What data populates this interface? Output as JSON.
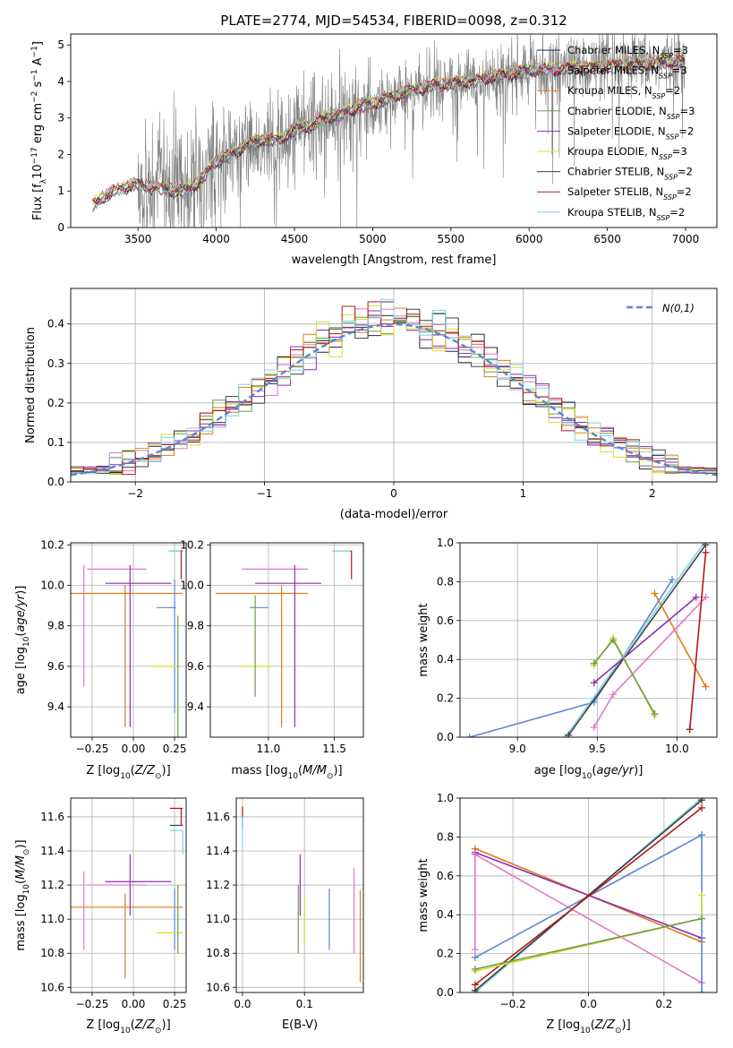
{
  "figure": {
    "title": "PLATE=2774, MJD=54534, FIBERID=0098, z=0.312"
  },
  "colors": {
    "data_gray": "#808080",
    "Chabrier MILES": "#1f2a3a",
    "Salpeter MILES": "#e377c2",
    "Kroupa MILES": "#e07b1a",
    "Chabrier ELODIE": "#6e9a52",
    "Salpeter ELODIE": "#8e2fb5",
    "Kroupa ELODIE": "#d8dd2a",
    "Chabrier STELIB": "#404040",
    "Salpeter STELIB": "#b01818",
    "Kroupa STELIB": "#7fd3df",
    "gaussian": "#5b86d6",
    "extra_blue": "#5b86d6",
    "extra_lime": "#a8dc3c"
  },
  "chart_data": [
    {
      "id": "spectrum",
      "type": "line",
      "title": "PLATE=2774, MJD=54534, FIBERID=0098, z=0.312",
      "xlabel": "wavelength [Angstrom, rest frame]",
      "ylabel": "Flux [f_λ 10^-17 erg cm^-2 s^-1 A^-1]",
      "xlim": [
        3070,
        7200
      ],
      "ylim": [
        0,
        5.3
      ],
      "xticks": [
        3500,
        4000,
        4500,
        5000,
        5500,
        6000,
        6500,
        7000
      ],
      "yticks": [
        0,
        1,
        2,
        3,
        4,
        5
      ],
      "legend_position": "right",
      "series": [
        {
          "name": "Chabrier MILES, N_SSP=3",
          "base": "Chabrier MILES",
          "offset": 0.0
        },
        {
          "name": "Salpeter MILES, N_SSP=3",
          "base": "Salpeter MILES",
          "offset": 0.02
        },
        {
          "name": "Kroupa MILES, N_SSP=2",
          "base": "Kroupa MILES",
          "offset": 0.05
        },
        {
          "name": "Chabrier ELODIE, N_SSP=3",
          "base": "Chabrier ELODIE",
          "offset": -0.03
        },
        {
          "name": "Salpeter ELODIE, N_SSP=2",
          "base": "Salpeter ELODIE",
          "offset": -0.02
        },
        {
          "name": "Kroupa ELODIE, N_SSP=3",
          "base": "Kroupa ELODIE",
          "offset": 0.04
        },
        {
          "name": "Chabrier STELIB, N_SSP=2",
          "base": "Chabrier STELIB",
          "offset": -0.05
        },
        {
          "name": "Salpeter STELIB, N_SSP=2",
          "base": "Salpeter STELIB",
          "offset": -0.01
        },
        {
          "name": "Kroupa STELIB, N_SSP=2",
          "base": "Kroupa STELIB",
          "offset": 0.01
        }
      ],
      "model_anchors": {
        "x": [
          3200,
          3300,
          3400,
          3500,
          3600,
          3700,
          3800,
          3900,
          4000,
          4100,
          4200,
          4300,
          4400,
          4500,
          4600,
          4700,
          4800,
          4900,
          5000,
          5200,
          5400,
          5600,
          5800,
          6000,
          6200,
          6400,
          6600,
          6800,
          7000
        ],
        "y": [
          0.6,
          0.9,
          1.1,
          1.2,
          1.1,
          1.05,
          1.0,
          1.3,
          1.8,
          2.0,
          2.3,
          2.4,
          2.4,
          2.7,
          2.8,
          3.0,
          3.1,
          3.3,
          3.4,
          3.7,
          3.9,
          4.0,
          4.15,
          4.3,
          4.35,
          4.4,
          4.45,
          4.5,
          4.55
        ]
      },
      "data_anchors": {
        "x_start": 3500,
        "x_end": 7000
      }
    },
    {
      "id": "residuals",
      "type": "line",
      "xlabel": "(data-model)/error",
      "ylabel": "Normed distribution",
      "xlim": [
        -2.5,
        2.5
      ],
      "ylim": [
        0,
        0.49
      ],
      "xticks": [
        -2,
        -1,
        0,
        1,
        2
      ],
      "yticks": [
        0.0,
        0.1,
        0.2,
        0.3,
        0.4
      ],
      "legend_position": "upper right",
      "gaussian_label": "N(0,1)",
      "bin_width": 0.1
    },
    {
      "id": "age_vs_Z",
      "type": "scatter",
      "xlabel": "Z [log10(Z/Z☉)]",
      "ylabel": "age [log10(age/yr)]",
      "xlim": [
        -0.38,
        0.32
      ],
      "ylim": [
        9.25,
        10.21
      ],
      "xticks": [
        -0.25,
        0.0,
        0.25
      ],
      "xtick_labels": [
        "−0.25",
        "0.00",
        "0.25"
      ],
      "yticks": [
        9.4,
        9.6,
        9.8,
        10.0,
        10.2
      ],
      "errorbars": [
        {
          "c": "Salpeter MILES",
          "x": -0.1,
          "xerr": 0.18,
          "y": 10.08,
          "yerr": 0.0
        },
        {
          "c": "Salpeter MILES",
          "x": -0.3,
          "xerr": 0.0,
          "y": 9.8,
          "yerr": 0.3
        },
        {
          "c": "Kroupa MILES",
          "x": -0.05,
          "xerr": 0.35,
          "y": 9.96,
          "yerr": 0.0
        },
        {
          "c": "Kroupa MILES",
          "x": -0.05,
          "xerr": 0.0,
          "y": 9.65,
          "yerr": 0.35
        },
        {
          "c": "Salpeter ELODIE",
          "x": 0.03,
          "xerr": 0.2,
          "y": 10.01,
          "yerr": 0.0
        },
        {
          "c": "Salpeter ELODIE",
          "x": -0.02,
          "xerr": 0.0,
          "y": 9.7,
          "yerr": 0.4
        },
        {
          "c": "Chabrier STELIB",
          "x": 0.26,
          "xerr": 0.04,
          "y": 10.17,
          "yerr": 0.0
        },
        {
          "c": "Salpeter STELIB",
          "x": 0.29,
          "xerr": 0.0,
          "y": 10.1,
          "yerr": 0.07
        },
        {
          "c": "Kroupa STELIB",
          "x": 0.25,
          "xerr": 0.04,
          "y": 10.17,
          "yerr": 0.0
        },
        {
          "c": "gaussian",
          "x": 0.2,
          "xerr": 0.06,
          "y": 9.89,
          "yerr": 0.0
        },
        {
          "c": "gaussian",
          "x": 0.25,
          "xerr": 0.0,
          "y": 9.7,
          "yerr": 0.33
        },
        {
          "c": "Kroupa ELODIE",
          "x": 0.2,
          "xerr": 0.09,
          "y": 9.6,
          "yerr": 0.0
        },
        {
          "c": "Chabrier ELODIE",
          "x": 0.27,
          "xerr": 0.0,
          "y": 9.55,
          "yerr": 0.3
        }
      ]
    },
    {
      "id": "age_vs_mass",
      "type": "scatter",
      "xlabel": "mass [log10(M/M☉)]",
      "xlim": [
        10.56,
        11.72
      ],
      "ylim": [
        9.25,
        10.21
      ],
      "xticks": [
        11.0,
        11.5
      ],
      "yticks": [
        9.4,
        9.6,
        9.8,
        10.0,
        10.2
      ],
      "errorbars": [
        {
          "c": "Salpeter MILES",
          "x": 11.05,
          "xerr": 0.25,
          "y": 10.08,
          "yerr": 0.0
        },
        {
          "c": "Kroupa MILES",
          "x": 10.95,
          "xerr": 0.35,
          "y": 9.96,
          "yerr": 0.0
        },
        {
          "c": "Kroupa MILES",
          "x": 11.1,
          "xerr": 0.0,
          "y": 9.65,
          "yerr": 0.35
        },
        {
          "c": "Salpeter ELODIE",
          "x": 11.15,
          "xerr": 0.25,
          "y": 10.01,
          "yerr": 0.0
        },
        {
          "c": "Salpeter ELODIE",
          "x": 11.2,
          "xerr": 0.0,
          "y": 9.7,
          "yerr": 0.4
        },
        {
          "c": "Salpeter STELIB",
          "x": 11.63,
          "xerr": 0.0,
          "y": 10.1,
          "yerr": 0.07
        },
        {
          "c": "Chabrier STELIB",
          "x": 11.56,
          "xerr": 0.07,
          "y": 10.17,
          "yerr": 0.0
        },
        {
          "c": "Kroupa STELIB",
          "x": 11.55,
          "xerr": 0.07,
          "y": 10.17,
          "yerr": 0.0
        },
        {
          "c": "gaussian",
          "x": 10.93,
          "xerr": 0.07,
          "y": 9.89,
          "yerr": 0.0
        },
        {
          "c": "Kroupa ELODIE",
          "x": 10.9,
          "xerr": 0.12,
          "y": 9.6,
          "yerr": 0.0
        },
        {
          "c": "Chabrier ELODIE",
          "x": 10.9,
          "xerr": 0.0,
          "y": 9.7,
          "yerr": 0.25
        }
      ]
    },
    {
      "id": "mass_vs_Z",
      "type": "scatter",
      "xlabel": "Z [log10(Z/Z☉)]",
      "ylabel": "mass [log10(M/M☉)]",
      "xlim": [
        -0.38,
        0.32
      ],
      "ylim": [
        10.57,
        11.71
      ],
      "xticks": [
        -0.25,
        0.0,
        0.25
      ],
      "xtick_labels": [
        "−0.25",
        "0.00",
        "0.25"
      ],
      "yticks": [
        10.6,
        10.8,
        11.0,
        11.2,
        11.4,
        11.6
      ],
      "errorbars": [
        {
          "c": "Salpeter MILES",
          "x": -0.1,
          "xerr": 0.18,
          "y": 11.2,
          "yerr": 0.0
        },
        {
          "c": "Salpeter MILES",
          "x": -0.3,
          "xerr": 0.0,
          "y": 11.05,
          "yerr": 0.23
        },
        {
          "c": "Kroupa MILES",
          "x": -0.05,
          "xerr": 0.35,
          "y": 11.07,
          "yerr": 0.0
        },
        {
          "c": "Kroupa MILES",
          "x": -0.05,
          "xerr": 0.0,
          "y": 10.9,
          "yerr": 0.25
        },
        {
          "c": "Salpeter ELODIE",
          "x": 0.03,
          "xerr": 0.2,
          "y": 11.22,
          "yerr": 0.0
        },
        {
          "c": "Salpeter ELODIE",
          "x": -0.02,
          "xerr": 0.0,
          "y": 11.2,
          "yerr": 0.18
        },
        {
          "c": "Salpeter STELIB",
          "x": 0.26,
          "xerr": 0.04,
          "y": 11.65,
          "yerr": 0.0
        },
        {
          "c": "Salpeter STELIB",
          "x": 0.29,
          "xerr": 0.0,
          "y": 11.6,
          "yerr": 0.05
        },
        {
          "c": "Chabrier STELIB",
          "x": 0.26,
          "xerr": 0.04,
          "y": 11.55,
          "yerr": 0.0
        },
        {
          "c": "Kroupa STELIB",
          "x": 0.26,
          "xerr": 0.04,
          "y": 11.52,
          "yerr": 0.0
        },
        {
          "c": "Kroupa STELIB",
          "x": 0.3,
          "xerr": 0.0,
          "y": 11.45,
          "yerr": 0.07
        },
        {
          "c": "gaussian",
          "x": 0.25,
          "xerr": 0.0,
          "y": 11.0,
          "yerr": 0.18
        },
        {
          "c": "Kroupa ELODIE",
          "x": 0.22,
          "xerr": 0.08,
          "y": 10.92,
          "yerr": 0.0
        },
        {
          "c": "Chabrier ELODIE",
          "x": 0.27,
          "xerr": 0.0,
          "y": 11.0,
          "yerr": 0.2
        }
      ]
    },
    {
      "id": "mass_vs_ebv",
      "type": "scatter",
      "xlabel": "E(B-V)",
      "xlim": [
        -0.01,
        0.195
      ],
      "ylim": [
        10.57,
        11.71
      ],
      "xticks": [
        0.0,
        0.1
      ],
      "xtick_labels": [
        "0.0",
        "0.1"
      ],
      "yticks": [
        10.6,
        10.8,
        11.0,
        11.2,
        11.4,
        11.6
      ],
      "errorbars": [
        {
          "c": "Salpeter STELIB",
          "x": 0.0,
          "xerr": 0.0,
          "y": 11.6,
          "yerr": 0.06
        },
        {
          "c": "Kroupa STELIB",
          "x": 0.0,
          "xerr": 0.0,
          "y": 11.5,
          "yerr": 0.1
        },
        {
          "c": "Chabrier ELODIE",
          "x": 0.09,
          "xerr": 0.0,
          "y": 11.0,
          "yerr": 0.2
        },
        {
          "c": "Salpeter ELODIE",
          "x": 0.093,
          "xerr": 0.0,
          "y": 11.2,
          "yerr": 0.18
        },
        {
          "c": "Kroupa ELODIE",
          "x": 0.1,
          "xerr": 0.0,
          "y": 11.0,
          "yerr": 0.15
        },
        {
          "c": "gaussian",
          "x": 0.14,
          "xerr": 0.0,
          "y": 11.0,
          "yerr": 0.18
        },
        {
          "c": "Salpeter MILES",
          "x": 0.18,
          "xerr": 0.0,
          "y": 11.05,
          "yerr": 0.25
        },
        {
          "c": "Kroupa MILES",
          "x": 0.19,
          "xerr": 0.0,
          "y": 10.9,
          "yerr": 0.27
        }
      ]
    },
    {
      "id": "weight_vs_age",
      "type": "line",
      "xlabel": "age [log10(age/yr)]",
      "ylabel": "mass weight",
      "xlim": [
        8.64,
        10.25
      ],
      "ylim": [
        0,
        1.0
      ],
      "xticks": [
        9.0,
        9.5,
        10.0
      ],
      "yticks": [
        0.0,
        0.2,
        0.4,
        0.6,
        0.8,
        1.0
      ],
      "series": [
        {
          "c": "gaussian",
          "x": [
            8.7,
            9.48,
            9.97
          ],
          "y": [
            0.0,
            0.18,
            0.81
          ]
        },
        {
          "c": "Kroupa STELIB",
          "x": [
            9.3,
            10.17
          ],
          "y": [
            0.0,
            1.0
          ]
        },
        {
          "c": "Chabrier STELIB",
          "x": [
            9.32,
            10.18
          ],
          "y": [
            0.01,
            0.99
          ]
        },
        {
          "c": "Kroupa MILES",
          "x": [
            9.86,
            10.18
          ],
          "y": [
            0.74,
            0.26
          ]
        },
        {
          "c": "Salpeter ELODIE",
          "x": [
            9.48,
            10.12
          ],
          "y": [
            0.28,
            0.72
          ]
        },
        {
          "c": "Salpeter MILES",
          "x": [
            9.48,
            9.6,
            10.18
          ],
          "y": [
            0.05,
            0.22,
            0.72
          ]
        },
        {
          "c": "Kroupa ELODIE",
          "x": [
            9.48,
            9.6,
            9.86
          ],
          "y": [
            0.37,
            0.51,
            0.11
          ]
        },
        {
          "c": "Chabrier ELODIE",
          "x": [
            9.48,
            9.6,
            9.86
          ],
          "y": [
            0.38,
            0.5,
            0.12
          ]
        },
        {
          "c": "Salpeter STELIB",
          "x": [
            10.08,
            10.18
          ],
          "y": [
            0.04,
            0.95
          ]
        }
      ]
    },
    {
      "id": "weight_vs_Z",
      "type": "line",
      "xlabel": "Z [log10(Z/Z☉)]",
      "ylabel": "mass weight",
      "xlim": [
        -0.34,
        0.34
      ],
      "ylim": [
        0,
        1.0
      ],
      "xticks": [
        -0.2,
        0.0,
        0.2
      ],
      "xtick_labels": [
        "−0.2",
        "0.0",
        "0.2"
      ],
      "yticks": [
        0.0,
        0.2,
        0.4,
        0.6,
        0.8,
        1.0
      ],
      "series": [
        {
          "c": "Kroupa MILES",
          "x": [
            -0.3,
            0.3
          ],
          "y": [
            0.74,
            0.26
          ]
        },
        {
          "c": "Salpeter ELODIE",
          "x": [
            -0.3,
            0.3
          ],
          "y": [
            0.72,
            0.28
          ]
        },
        {
          "c": "Salpeter MILES",
          "x": [
            -0.3,
            0.3
          ],
          "y": [
            0.71,
            0.05
          ]
        },
        {
          "c": "Salpeter MILES",
          "x": [
            -0.3,
            -0.3
          ],
          "y": [
            0.71,
            0.22
          ]
        },
        {
          "c": "gaussian",
          "x": [
            -0.3,
            0.3
          ],
          "y": [
            0.18,
            0.81
          ]
        },
        {
          "c": "gaussian",
          "x": [
            0.3,
            0.3
          ],
          "y": [
            0.81,
            0.0
          ]
        },
        {
          "c": "Kroupa STELIB",
          "x": [
            -0.3,
            0.3
          ],
          "y": [
            0.0,
            1.0
          ]
        },
        {
          "c": "Chabrier STELIB",
          "x": [
            -0.3,
            0.3
          ],
          "y": [
            0.01,
            0.99
          ]
        },
        {
          "c": "Salpeter STELIB",
          "x": [
            -0.3,
            0.3
          ],
          "y": [
            0.04,
            0.95
          ]
        },
        {
          "c": "Kroupa ELODIE",
          "x": [
            -0.3,
            0.3
          ],
          "y": [
            0.11,
            0.38
          ]
        },
        {
          "c": "Kroupa ELODIE",
          "x": [
            0.3,
            0.3
          ],
          "y": [
            0.38,
            0.5
          ]
        },
        {
          "c": "Chabrier ELODIE",
          "x": [
            -0.3,
            0.3
          ],
          "y": [
            0.12,
            0.38
          ]
        }
      ]
    }
  ]
}
